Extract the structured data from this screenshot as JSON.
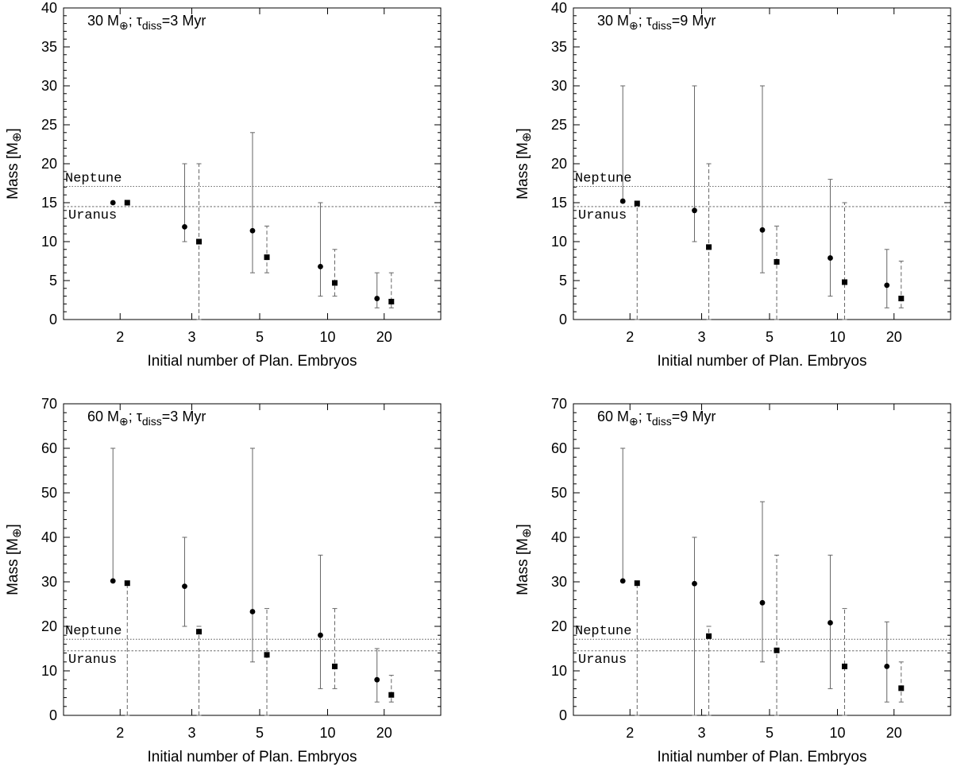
{
  "figure": {
    "xlabel": "Initial number of Plan. Embryos",
    "ylabel_prefix": "Mass [M",
    "ylabel_suffix": "]",
    "earth_symbol": "⊕",
    "ref_lines": {
      "neptune": "Neptune",
      "uranus": "Uranus"
    }
  },
  "chart_data": [
    {
      "type": "scatter",
      "title_prefix": "30 M",
      "title_mid": "; τ",
      "title_sub": "diss",
      "title_suffix": "=3 Myr",
      "categories": [
        "2",
        "3",
        "5",
        "10",
        "20"
      ],
      "ylim": [
        0,
        40
      ],
      "yticks": [
        0,
        5,
        10,
        15,
        20,
        25,
        30,
        35,
        40
      ],
      "neptune": 17.1,
      "uranus": 14.5,
      "series": [
        {
          "name": "circle",
          "marker": "circle",
          "line": "solid",
          "values": [
            15.0,
            11.9,
            11.4,
            6.8,
            2.7
          ],
          "low": [
            null,
            10.0,
            6.0,
            3.0,
            1.5
          ],
          "high": [
            null,
            20.0,
            24.0,
            15.0,
            6.0
          ]
        },
        {
          "name": "square",
          "marker": "square",
          "line": "dashed",
          "values": [
            15.0,
            10.0,
            8.0,
            4.7,
            2.3
          ],
          "low": [
            null,
            0.0,
            6.0,
            3.0,
            1.5
          ],
          "high": [
            null,
            20.0,
            12.0,
            9.0,
            6.0
          ]
        }
      ]
    },
    {
      "type": "scatter",
      "title_prefix": "30 M",
      "title_mid": "; τ",
      "title_sub": "diss",
      "title_suffix": "=9 Myr",
      "categories": [
        "2",
        "3",
        "5",
        "10",
        "20"
      ],
      "ylim": [
        0,
        40
      ],
      "yticks": [
        0,
        5,
        10,
        15,
        20,
        25,
        30,
        35,
        40
      ],
      "neptune": 17.1,
      "uranus": 14.5,
      "series": [
        {
          "name": "circle",
          "marker": "circle",
          "line": "solid",
          "values": [
            15.2,
            14.0,
            11.5,
            7.9,
            4.4
          ],
          "low": [
            15.0,
            10.0,
            6.0,
            3.0,
            1.5
          ],
          "high": [
            30.0,
            30.0,
            30.0,
            18.0,
            9.0
          ]
        },
        {
          "name": "square",
          "marker": "square",
          "line": "dashed",
          "values": [
            14.9,
            9.3,
            7.4,
            4.8,
            2.7
          ],
          "low": [
            0.0,
            0.0,
            0.0,
            0.0,
            1.5
          ],
          "high": [
            15.0,
            20.0,
            12.0,
            15.0,
            7.5
          ]
        }
      ]
    },
    {
      "type": "scatter",
      "title_prefix": "60 M",
      "title_mid": "; τ",
      "title_sub": "diss",
      "title_suffix": "=3 Myr",
      "categories": [
        "2",
        "3",
        "5",
        "10",
        "20"
      ],
      "ylim": [
        0,
        70
      ],
      "yticks": [
        0,
        10,
        20,
        30,
        40,
        50,
        60,
        70
      ],
      "neptune": 17.1,
      "uranus": 14.5,
      "series": [
        {
          "name": "circle",
          "marker": "circle",
          "line": "solid",
          "values": [
            30.2,
            29.0,
            23.3,
            18.0,
            8.0
          ],
          "low": [
            30.0,
            20.0,
            12.0,
            6.0,
            3.0
          ],
          "high": [
            60.0,
            40.0,
            60.0,
            36.0,
            15.0
          ]
        },
        {
          "name": "square",
          "marker": "square",
          "line": "dashed",
          "values": [
            29.7,
            18.8,
            13.6,
            11.0,
            4.6
          ],
          "low": [
            0.0,
            0.0,
            0.0,
            6.0,
            3.0
          ],
          "high": [
            30.0,
            20.0,
            24.0,
            24.0,
            9.0
          ]
        }
      ]
    },
    {
      "type": "scatter",
      "title_prefix": "60 M",
      "title_mid": "; τ",
      "title_sub": "diss",
      "title_suffix": "=9 Myr",
      "categories": [
        "2",
        "3",
        "5",
        "10",
        "20"
      ],
      "ylim": [
        0,
        70
      ],
      "yticks": [
        0,
        10,
        20,
        30,
        40,
        50,
        60,
        70
      ],
      "neptune": 17.1,
      "uranus": 14.5,
      "series": [
        {
          "name": "circle",
          "marker": "circle",
          "line": "solid",
          "values": [
            30.2,
            29.6,
            25.3,
            20.8,
            11.0
          ],
          "low": [
            30.0,
            0.0,
            12.0,
            6.0,
            3.0
          ],
          "high": [
            60.0,
            40.0,
            48.0,
            36.0,
            21.0
          ]
        },
        {
          "name": "square",
          "marker": "square",
          "line": "dashed",
          "values": [
            29.7,
            17.8,
            14.6,
            11.0,
            6.1
          ],
          "low": [
            0.0,
            0.0,
            0.0,
            0.0,
            3.0
          ],
          "high": [
            30.0,
            20.0,
            36.0,
            24.0,
            12.0
          ]
        }
      ]
    }
  ]
}
